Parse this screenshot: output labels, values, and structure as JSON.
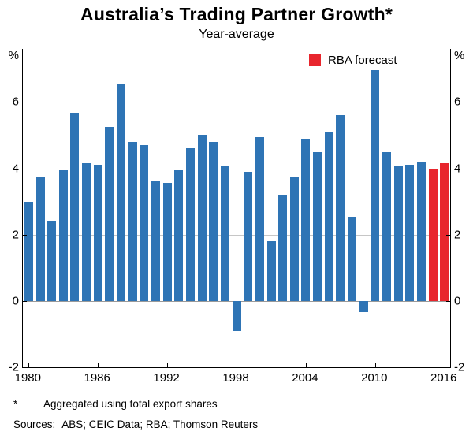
{
  "title": "Australia’s Trading Partner Growth*",
  "subtitle": "Year-average",
  "axis": {
    "left_unit": "%",
    "right_unit": "%",
    "yticks": [
      6,
      4,
      2,
      0,
      -2
    ],
    "xticks": [
      1980,
      1986,
      1992,
      1998,
      2004,
      2010,
      2016
    ]
  },
  "footnotes": [
    {
      "marker": "*",
      "text": "Aggregated using total export shares"
    }
  ],
  "sources": {
    "label": "Sources:",
    "text": "ABS; CEIC Data; RBA; Thomson Reuters"
  },
  "colors": {
    "bar": "#2e74b5",
    "forecast": "#e8262d",
    "grid": "#c6c6c6",
    "zero_line": "#9a9a9a",
    "axis": "#000000"
  },
  "chart_data": {
    "type": "bar",
    "title": "Australia’s Trading Partner Growth*",
    "subtitle": "Year-average",
    "xlabel": "",
    "ylabel": "%",
    "ylim": [
      -2,
      7.6
    ],
    "gridlines": [
      6,
      4,
      2,
      0
    ],
    "grid": true,
    "legend_position": "top-right",
    "legend": [
      {
        "label": "RBA forecast",
        "color": "#e8262d"
      }
    ],
    "categories": [
      1980,
      1981,
      1982,
      1983,
      1984,
      1985,
      1986,
      1987,
      1988,
      1989,
      1990,
      1991,
      1992,
      1993,
      1994,
      1995,
      1996,
      1997,
      1998,
      1999,
      2000,
      2001,
      2002,
      2003,
      2004,
      2005,
      2006,
      2007,
      2008,
      2009,
      2010,
      2011,
      2012,
      2013,
      2014,
      2015,
      2016
    ],
    "series": [
      {
        "name": "Trading partner growth (year-average)",
        "values": [
          3.0,
          3.75,
          2.4,
          3.95,
          5.65,
          4.15,
          4.1,
          5.25,
          6.55,
          4.8,
          4.7,
          3.6,
          3.55,
          3.95,
          4.6,
          5.0,
          4.8,
          4.05,
          -0.9,
          3.9,
          4.95,
          1.8,
          3.2,
          3.75,
          4.9,
          4.5,
          5.1,
          5.6,
          2.55,
          -0.35,
          6.95,
          4.5,
          4.05,
          4.1,
          4.2,
          4.0,
          4.15
        ]
      }
    ],
    "forecast_years": [
      2015,
      2016
    ]
  }
}
